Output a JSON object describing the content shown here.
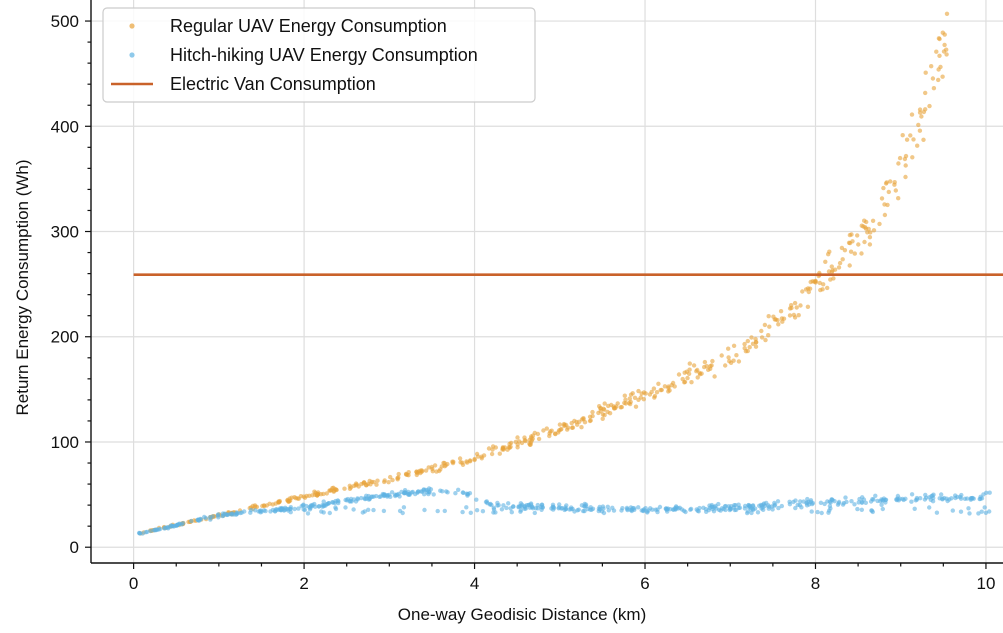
{
  "chart_data": {
    "type": "scatter",
    "title": "",
    "xlabel": "One-way Geodisic Distance (km)",
    "ylabel": "Return Energy Consumption (Wh)",
    "xlim": [
      -0.5,
      10.2
    ],
    "ylim": [
      -15,
      520
    ],
    "xticks": [
      0,
      2,
      4,
      6,
      8,
      10
    ],
    "yticks": [
      0,
      100,
      200,
      300,
      400,
      500
    ],
    "grid": true,
    "legend_position": "top-left",
    "colors": {
      "regular": "#e8a33a",
      "hitch": "#5fb3e3",
      "van": "#c9622a",
      "grid": "#dedede"
    },
    "series": [
      {
        "name": "Regular UAV Energy Consumption",
        "kind": "scatter",
        "color": "#e8a33a",
        "curve": "regular",
        "x_range": [
          0.05,
          9.55
        ],
        "points": 520
      },
      {
        "name": "Hitch-hiking UAV Energy Consumption",
        "kind": "scatter",
        "color": "#5fb3e3",
        "curve": "hitch",
        "x_range": [
          0.05,
          10.05
        ],
        "points": 620
      },
      {
        "name": "Electric Van Consumption",
        "kind": "line",
        "color": "#c9622a",
        "x": [
          0.0,
          10.2
        ],
        "y": [
          259,
          259
        ]
      }
    ],
    "regular_reference": {
      "x": [
        0,
        1,
        2,
        3,
        4,
        5,
        6,
        7,
        7.5,
        8,
        8.5,
        9,
        9.3,
        9.55
      ],
      "y": [
        12,
        30,
        48,
        65,
        85,
        112,
        145,
        180,
        210,
        250,
        290,
        360,
        420,
        490
      ]
    },
    "hitch_reference": {
      "x": [
        0,
        1,
        2,
        3,
        3.8,
        4.2,
        5,
        6,
        7,
        8,
        9,
        10
      ],
      "y": [
        12,
        30,
        38,
        50,
        55,
        40,
        38,
        36,
        38,
        42,
        45,
        48
      ]
    }
  }
}
